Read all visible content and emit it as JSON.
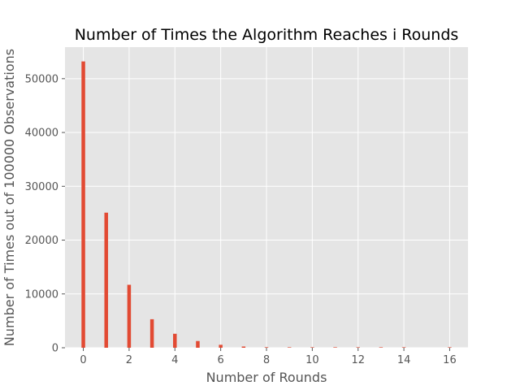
{
  "chart_data": {
    "type": "bar",
    "title": "Number of Times the Algorithm Reaches i Rounds",
    "xlabel": "Number of Rounds",
    "ylabel": "Number of Times out of 100000 Observations",
    "x": [
      0,
      1,
      2,
      3,
      4,
      5,
      6,
      7,
      8,
      9,
      10,
      11,
      12,
      13,
      14,
      15,
      16
    ],
    "values": [
      53200,
      25100,
      11700,
      5300,
      2600,
      1250,
      550,
      230,
      100,
      40,
      15,
      6,
      3,
      1,
      1,
      0,
      1
    ],
    "xlim": [
      -0.8,
      16.8
    ],
    "ylim": [
      0,
      55860
    ],
    "xticks": [
      0,
      2,
      4,
      6,
      8,
      10,
      12,
      14,
      16
    ],
    "yticks": [
      0,
      10000,
      20000,
      30000,
      40000,
      50000
    ],
    "xtick_labels": [
      "0",
      "2",
      "4",
      "6",
      "8",
      "10",
      "12",
      "14",
      "16"
    ],
    "ytick_labels": [
      "0",
      "10000",
      "20000",
      "30000",
      "40000",
      "50000"
    ],
    "grid": true,
    "colors": {
      "bar": "#e24a33",
      "plot_background": "#e5e5e5",
      "grid": "#ffffff",
      "tick_label": "#555555"
    }
  }
}
